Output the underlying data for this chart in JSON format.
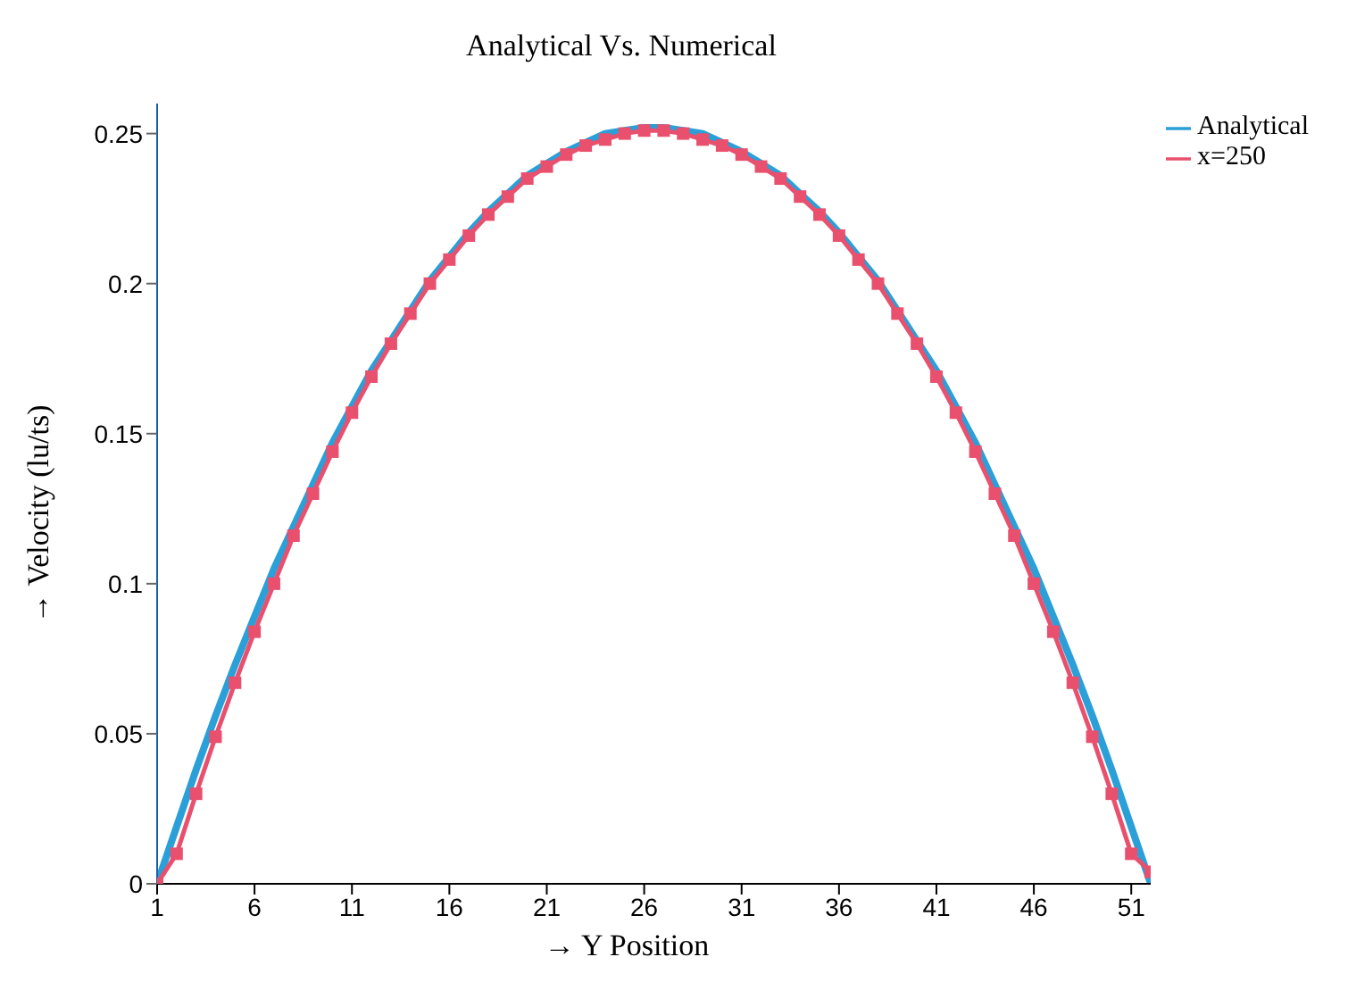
{
  "chart_data": {
    "type": "line",
    "title": "Analytical Vs. Numerical",
    "xlabel": "→ Y Position",
    "ylabel": "→ Velocity (lu/ts)",
    "x": [
      1,
      2,
      3,
      4,
      5,
      6,
      7,
      8,
      9,
      10,
      11,
      12,
      13,
      14,
      15,
      16,
      17,
      18,
      19,
      20,
      21,
      22,
      23,
      24,
      25,
      26,
      27,
      28,
      29,
      30,
      31,
      32,
      33,
      34,
      35,
      36,
      37,
      38,
      39,
      40,
      41,
      42,
      43,
      44,
      45,
      46,
      47,
      48,
      49,
      50,
      51,
      52
    ],
    "series": [
      {
        "name": "Analytical",
        "color": "#2a9fd8",
        "marker": "none",
        "values": [
          0,
          0.019,
          0.038,
          0.056,
          0.073,
          0.089,
          0.105,
          0.119,
          0.133,
          0.147,
          0.159,
          0.171,
          0.181,
          0.191,
          0.201,
          0.209,
          0.217,
          0.224,
          0.23,
          0.236,
          0.24,
          0.244,
          0.247,
          0.25,
          0.251,
          0.252,
          0.252,
          0.251,
          0.25,
          0.247,
          0.244,
          0.24,
          0.236,
          0.23,
          0.224,
          0.217,
          0.209,
          0.201,
          0.191,
          0.181,
          0.171,
          0.159,
          0.147,
          0.133,
          0.119,
          0.105,
          0.089,
          0.073,
          0.056,
          0.038,
          0.019,
          0
        ]
      },
      {
        "name": "x=250",
        "color": "#e8506e",
        "marker": "square",
        "values": [
          0,
          0.01,
          0.03,
          0.049,
          0.067,
          0.084,
          0.1,
          0.116,
          0.13,
          0.144,
          0.157,
          0.169,
          0.18,
          0.19,
          0.2,
          0.208,
          0.216,
          0.223,
          0.229,
          0.235,
          0.239,
          0.243,
          0.246,
          0.248,
          0.25,
          0.251,
          0.251,
          0.25,
          0.248,
          0.246,
          0.243,
          0.239,
          0.235,
          0.229,
          0.223,
          0.216,
          0.208,
          0.2,
          0.19,
          0.18,
          0.169,
          0.157,
          0.144,
          0.13,
          0.116,
          0.1,
          0.084,
          0.067,
          0.049,
          0.03,
          0.01,
          0.004
        ]
      }
    ],
    "xlim": [
      1,
      52
    ],
    "xticks": [
      1,
      6,
      11,
      16,
      21,
      26,
      31,
      36,
      41,
      46,
      51
    ],
    "ylim": [
      0,
      0.26
    ],
    "yticks": [
      0,
      0.05,
      {
        "value": 0.1,
        "label": "0.1"
      },
      0.15,
      {
        "value": 0.2,
        "label": "0.2"
      },
      0.25
    ],
    "grid": false,
    "legend": "top right",
    "line_style": "solid"
  }
}
